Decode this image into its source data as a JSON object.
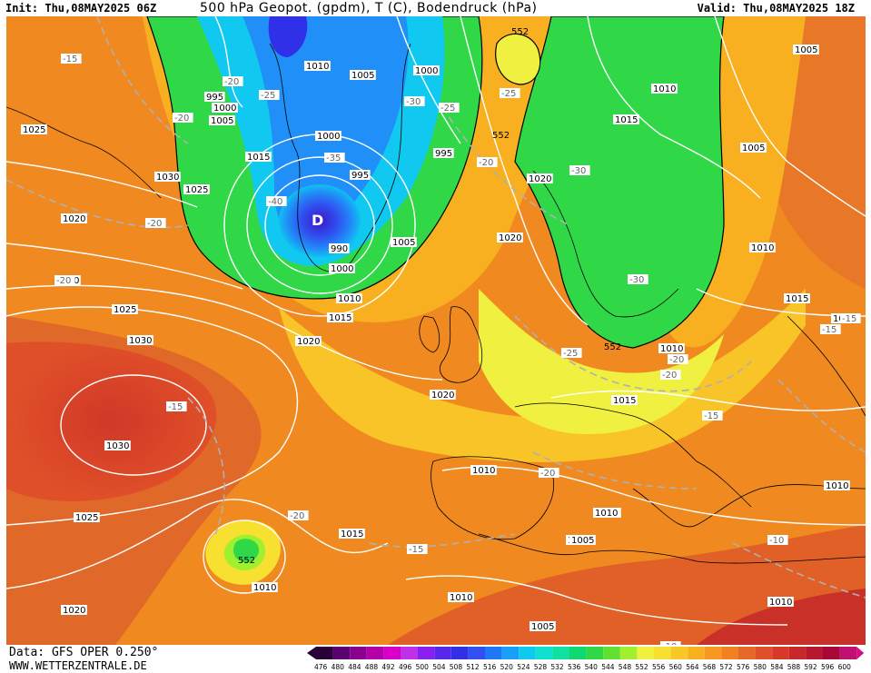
{
  "header": {
    "init": "Init: Thu,08MAY2025 06Z",
    "title": "500 hPa Geopot. (gpdm), T (C), Bodendruck (hPa)",
    "valid": "Valid: Thu,08MAY2025 18Z"
  },
  "footer": {
    "source": "Data: GFS OPER 0.250°",
    "website": "WWW.WETTERZENTRALE.DE"
  },
  "legend": {
    "values": [
      "476",
      "480",
      "484",
      "488",
      "492",
      "496",
      "500",
      "504",
      "508",
      "512",
      "516",
      "520",
      "524",
      "528",
      "532",
      "536",
      "540",
      "544",
      "548",
      "552",
      "556",
      "560",
      "564",
      "568",
      "572",
      "576",
      "580",
      "584",
      "588",
      "592",
      "596",
      "600"
    ],
    "colors": [
      "#2a0038",
      "#5a0070",
      "#8a0090",
      "#b400a8",
      "#d800c8",
      "#c030e8",
      "#8a20f0",
      "#5828e8",
      "#3030e8",
      "#3050f0",
      "#2078f8",
      "#18a0f8",
      "#10c8f0",
      "#10e0d0",
      "#10e0a0",
      "#10d870",
      "#30d848",
      "#60e030",
      "#a0f030",
      "#f0f040",
      "#f8e030",
      "#f8c828",
      "#f8b020",
      "#f89820",
      "#f08020",
      "#e86828",
      "#e05028",
      "#d83828",
      "#c82828",
      "#b81830",
      "#a80838",
      "#c01070"
    ]
  },
  "map_labels": {
    "isobars": [
      {
        "t": "1025"
      },
      {
        "t": "1030"
      },
      {
        "t": "1020"
      },
      {
        "t": "1020"
      },
      {
        "t": "1025"
      },
      {
        "t": "1030"
      },
      {
        "t": "1030"
      },
      {
        "t": "1025"
      },
      {
        "t": "1020"
      },
      {
        "t": "1015"
      },
      {
        "t": "1015"
      },
      {
        "t": "1010"
      },
      {
        "t": "1000"
      },
      {
        "t": "990"
      },
      {
        "t": "995"
      },
      {
        "t": "1000"
      },
      {
        "t": "1005"
      },
      {
        "t": "1010"
      },
      {
        "t": "1005"
      },
      {
        "t": "1000"
      },
      {
        "t": "995"
      },
      {
        "t": "1015"
      },
      {
        "t": "1025"
      },
      {
        "t": "1010"
      },
      {
        "t": "1020"
      },
      {
        "t": "1020"
      },
      {
        "t": "1010"
      },
      {
        "t": "1015"
      },
      {
        "t": "1005"
      },
      {
        "t": "1010"
      },
      {
        "t": "1015"
      },
      {
        "t": "1005"
      },
      {
        "t": "1010"
      },
      {
        "t": "1010"
      },
      {
        "t": "1015"
      },
      {
        "t": "1015"
      },
      {
        "t": "1010"
      },
      {
        "t": "1010"
      },
      {
        "t": "1005"
      },
      {
        "t": "1010"
      },
      {
        "t": "1005"
      },
      {
        "t": "1020"
      },
      {
        "t": "1000"
      },
      {
        "t": "1005"
      },
      {
        "t": "1020"
      },
      {
        "t": "1010"
      },
      {
        "t": "1010"
      },
      {
        "t": "1015"
      },
      {
        "t": "1015"
      },
      {
        "t": "1005"
      },
      {
        "t": "1010"
      },
      {
        "t": "995"
      }
    ],
    "temps": [
      {
        "t": "-15"
      },
      {
        "t": "-20"
      },
      {
        "t": "-20"
      },
      {
        "t": "-25"
      },
      {
        "t": "-30"
      },
      {
        "t": "-35"
      },
      {
        "t": "-40"
      },
      {
        "t": "-20"
      },
      {
        "t": "-20"
      },
      {
        "t": "-25"
      },
      {
        "t": "-25"
      },
      {
        "t": "-20"
      },
      {
        "t": "-30"
      },
      {
        "t": "-30"
      },
      {
        "t": "-25"
      },
      {
        "t": "-20"
      },
      {
        "t": "-15"
      },
      {
        "t": "-15"
      },
      {
        "t": "-15"
      },
      {
        "t": "-20"
      },
      {
        "t": "-20"
      },
      {
        "t": "-15"
      },
      {
        "t": "-10"
      },
      {
        "t": "-10"
      },
      {
        "t": "-15"
      },
      {
        "t": "-20"
      },
      {
        "t": "-30"
      },
      {
        "t": "-15"
      }
    ],
    "geopot": [
      {
        "t": "552"
      },
      {
        "t": "552"
      },
      {
        "t": "552"
      },
      {
        "t": "552"
      }
    ],
    "low_marker": "D"
  }
}
